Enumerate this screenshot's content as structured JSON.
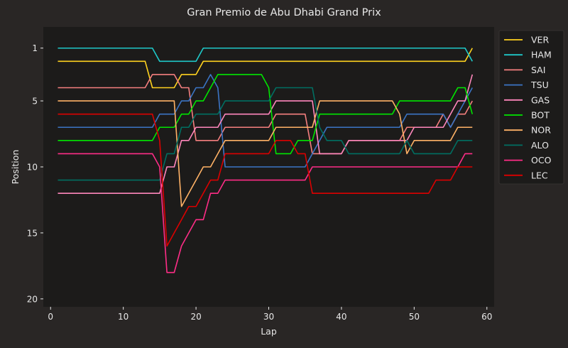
{
  "chart_data": {
    "type": "line",
    "title": "Gran Premio de Abu Dhabi Grand Prix",
    "xlabel": "Lap",
    "ylabel": "Position",
    "xlim": [
      -1,
      61
    ],
    "ylim": [
      20.6,
      -0.6
    ],
    "y_inverted": true,
    "xticks": [
      0,
      10,
      20,
      30,
      40,
      50,
      60
    ],
    "yticks": [
      1,
      5,
      10,
      15,
      20
    ],
    "grid": false,
    "legend_position": "outside-right",
    "background": "#1c1b1a",
    "x": [
      1,
      2,
      3,
      4,
      5,
      6,
      7,
      8,
      9,
      10,
      11,
      12,
      13,
      14,
      15,
      16,
      17,
      18,
      19,
      20,
      21,
      22,
      23,
      24,
      25,
      26,
      27,
      28,
      29,
      30,
      31,
      32,
      33,
      34,
      35,
      36,
      37,
      38,
      39,
      40,
      41,
      42,
      43,
      44,
      45,
      46,
      47,
      48,
      49,
      50,
      51,
      52,
      53,
      54,
      55,
      56,
      57,
      58
    ],
    "series": [
      {
        "name": "VER",
        "color": "#ffd21f",
        "values": [
          2,
          2,
          2,
          2,
          2,
          2,
          2,
          2,
          2,
          2,
          2,
          2,
          2,
          4,
          4,
          4,
          4,
          3,
          3,
          3,
          2,
          2,
          2,
          2,
          2,
          2,
          2,
          2,
          2,
          2,
          2,
          2,
          2,
          2,
          2,
          2,
          2,
          2,
          2,
          2,
          2,
          2,
          2,
          2,
          2,
          2,
          2,
          2,
          2,
          2,
          2,
          2,
          2,
          2,
          2,
          2,
          2,
          1
        ]
      },
      {
        "name": "HAM",
        "color": "#1ec8c8",
        "values": [
          1,
          1,
          1,
          1,
          1,
          1,
          1,
          1,
          1,
          1,
          1,
          1,
          1,
          1,
          2,
          2,
          2,
          2,
          2,
          2,
          1,
          1,
          1,
          1,
          1,
          1,
          1,
          1,
          1,
          1,
          1,
          1,
          1,
          1,
          1,
          1,
          1,
          1,
          1,
          1,
          1,
          1,
          1,
          1,
          1,
          1,
          1,
          1,
          1,
          1,
          1,
          1,
          1,
          1,
          1,
          1,
          1,
          2
        ]
      },
      {
        "name": "SAI",
        "color": "#f57f7f",
        "values": [
          4,
          4,
          4,
          4,
          4,
          4,
          4,
          4,
          4,
          4,
          4,
          4,
          4,
          3,
          3,
          3,
          3,
          4,
          4,
          8,
          8,
          8,
          8,
          7,
          7,
          7,
          7,
          7,
          7,
          7,
          6,
          6,
          6,
          6,
          6,
          9,
          9,
          9,
          9,
          9,
          8,
          8,
          8,
          8,
          8,
          8,
          8,
          8,
          7,
          7,
          7,
          7,
          7,
          6,
          7,
          6,
          6,
          5
        ]
      },
      {
        "name": "TSU",
        "color": "#3b74c4",
        "values": [
          7,
          7,
          7,
          7,
          7,
          7,
          7,
          7,
          7,
          7,
          7,
          7,
          7,
          7,
          6,
          6,
          6,
          5,
          5,
          4,
          4,
          3,
          4,
          10,
          10,
          10,
          10,
          10,
          10,
          10,
          10,
          10,
          10,
          10,
          10,
          9,
          8,
          7,
          7,
          7,
          7,
          7,
          7,
          7,
          7,
          7,
          7,
          7,
          6,
          6,
          6,
          6,
          6,
          6,
          7,
          6,
          5,
          4
        ]
      },
      {
        "name": "GAS",
        "color": "#ff87bc",
        "values": [
          12,
          12,
          12,
          12,
          12,
          12,
          12,
          12,
          12,
          12,
          12,
          12,
          12,
          12,
          12,
          10,
          10,
          8,
          8,
          7,
          7,
          7,
          7,
          6,
          6,
          6,
          6,
          6,
          6,
          6,
          5,
          5,
          5,
          5,
          5,
          5,
          9,
          9,
          9,
          9,
          8,
          8,
          8,
          8,
          8,
          8,
          8,
          8,
          8,
          7,
          7,
          7,
          7,
          7,
          6,
          5,
          5,
          3
        ]
      },
      {
        "name": "BOT",
        "color": "#00e600",
        "values": [
          8,
          8,
          8,
          8,
          8,
          8,
          8,
          8,
          8,
          8,
          8,
          8,
          8,
          8,
          7,
          7,
          7,
          6,
          6,
          5,
          5,
          4,
          3,
          3,
          3,
          3,
          3,
          3,
          3,
          4,
          9,
          9,
          9,
          8,
          8,
          8,
          6,
          6,
          6,
          6,
          6,
          6,
          6,
          6,
          6,
          6,
          6,
          5,
          5,
          5,
          5,
          5,
          5,
          5,
          5,
          4,
          4,
          6
        ]
      },
      {
        "name": "NOR",
        "color": "#ffb266",
        "values": [
          5,
          5,
          5,
          5,
          5,
          5,
          5,
          5,
          5,
          5,
          5,
          5,
          5,
          5,
          5,
          5,
          5,
          13,
          12,
          11,
          10,
          10,
          9,
          8,
          8,
          8,
          8,
          8,
          8,
          8,
          7,
          7,
          7,
          7,
          7,
          7,
          5,
          5,
          5,
          5,
          5,
          5,
          5,
          5,
          5,
          5,
          5,
          6,
          9,
          8,
          8,
          8,
          8,
          8,
          8,
          7,
          7,
          7
        ]
      },
      {
        "name": "ALO",
        "color": "#006f62",
        "values": [
          11,
          11,
          11,
          11,
          11,
          11,
          11,
          11,
          11,
          11,
          11,
          11,
          11,
          11,
          11,
          9,
          9,
          7,
          7,
          6,
          6,
          6,
          6,
          5,
          5,
          5,
          5,
          5,
          5,
          5,
          4,
          4,
          4,
          4,
          4,
          4,
          7,
          8,
          8,
          8,
          9,
          9,
          9,
          9,
          9,
          9,
          9,
          9,
          8,
          9,
          9,
          9,
          9,
          9,
          9,
          8,
          8,
          8
        ]
      },
      {
        "name": "OCO",
        "color": "#ff2d87",
        "values": [
          9,
          9,
          9,
          9,
          9,
          9,
          9,
          9,
          9,
          9,
          9,
          9,
          9,
          9,
          10,
          18,
          18,
          16,
          15,
          14,
          14,
          12,
          12,
          11,
          11,
          11,
          11,
          11,
          11,
          11,
          11,
          11,
          11,
          11,
          11,
          10,
          10,
          10,
          10,
          10,
          10,
          10,
          10,
          10,
          10,
          10,
          10,
          10,
          10,
          10,
          10,
          10,
          10,
          10,
          10,
          10,
          9,
          9
        ]
      },
      {
        "name": "LEC",
        "color": "#dc0000",
        "values": [
          6,
          6,
          6,
          6,
          6,
          6,
          6,
          6,
          6,
          6,
          6,
          6,
          6,
          6,
          8,
          16,
          15,
          14,
          13,
          13,
          12,
          11,
          11,
          9,
          9,
          9,
          9,
          9,
          9,
          9,
          8,
          8,
          8,
          9,
          9,
          12,
          12,
          12,
          12,
          12,
          12,
          12,
          12,
          12,
          12,
          12,
          12,
          12,
          12,
          12,
          12,
          12,
          11,
          11,
          11,
          10,
          10,
          10
        ]
      }
    ]
  }
}
